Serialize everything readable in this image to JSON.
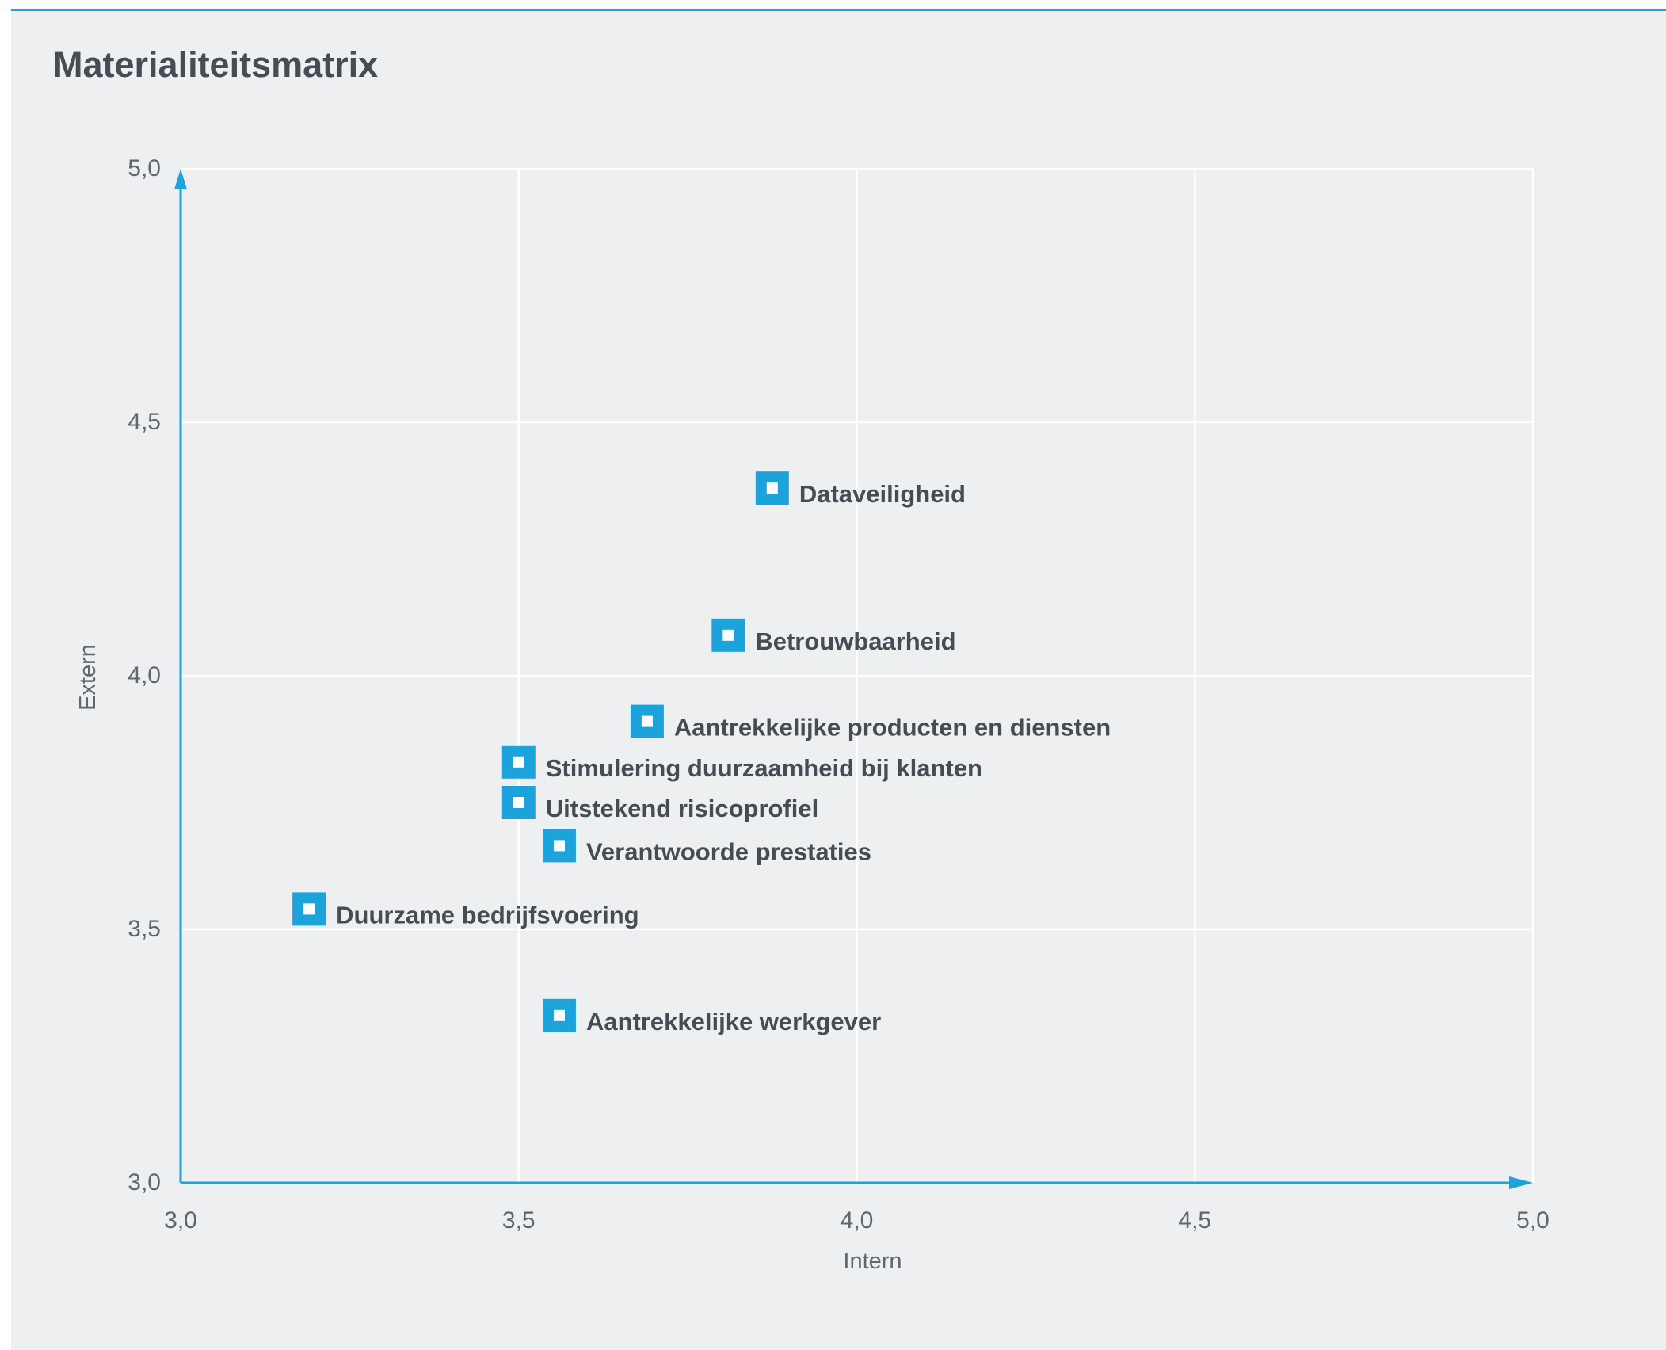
{
  "chart_data": {
    "type": "scatter",
    "title": "Materialiteitsmatrix",
    "xlabel": "Intern",
    "ylabel": "Extern",
    "xlim": [
      3.0,
      5.0
    ],
    "ylim": [
      3.0,
      5.0
    ],
    "xticks": [
      {
        "value": 3.0,
        "label": "3,0"
      },
      {
        "value": 3.5,
        "label": "3,5"
      },
      {
        "value": 4.0,
        "label": "4,0"
      },
      {
        "value": 4.5,
        "label": "4,5"
      },
      {
        "value": 5.0,
        "label": "5,0"
      }
    ],
    "yticks": [
      {
        "value": 3.0,
        "label": "3,0"
      },
      {
        "value": 3.5,
        "label": "3,5"
      },
      {
        "value": 4.0,
        "label": "4,0"
      },
      {
        "value": 4.5,
        "label": "4,5"
      },
      {
        "value": 5.0,
        "label": "5,0"
      }
    ],
    "grid": true,
    "points": [
      {
        "label": "Dataveiligheid",
        "x": 3.875,
        "y": 4.37
      },
      {
        "label": "Betrouwbaarheid",
        "x": 3.81,
        "y": 4.08
      },
      {
        "label": "Aantrekkelijke producten en diensten",
        "x": 3.69,
        "y": 3.91
      },
      {
        "label": "Stimulering duurzaamheid bij klanten",
        "x": 3.5,
        "y": 3.83
      },
      {
        "label": "Uitstekend risicoprofiel",
        "x": 3.5,
        "y": 3.75
      },
      {
        "label": "Verantwoorde prestaties",
        "x": 3.56,
        "y": 3.665
      },
      {
        "label": "Duurzame bedrijfsvoering",
        "x": 3.19,
        "y": 3.54
      },
      {
        "label": "Aantrekkelijke werkgever",
        "x": 3.56,
        "y": 3.33
      }
    ]
  },
  "colors": {
    "accent": "#1ca3dc",
    "text": "#454c54",
    "tick": "#5f666d",
    "grid": "#ffffff",
    "background": "#eeeff1"
  }
}
